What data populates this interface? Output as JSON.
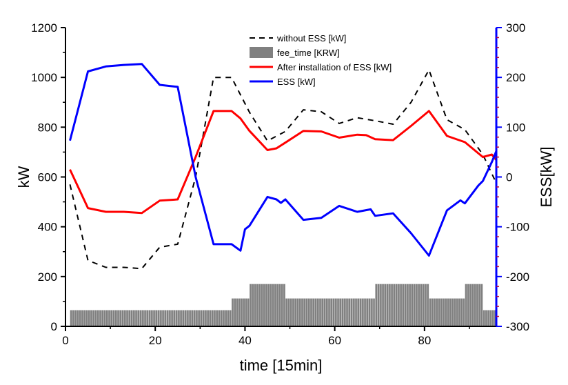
{
  "chart_data": {
    "type": "line",
    "xlabel": "time [15min]",
    "ylabel_left": "kW",
    "ylabel_right": "ESS[kW]",
    "xlim": [
      0,
      96
    ],
    "ylim_left": [
      0,
      1200
    ],
    "ylim_right": [
      -300,
      300
    ],
    "x_ticks": [
      0,
      20,
      40,
      60,
      80
    ],
    "y_left_ticks": [
      0,
      200,
      400,
      600,
      800,
      1000,
      1200
    ],
    "y_right_ticks": [
      -300,
      -200,
      -100,
      0,
      100,
      200,
      300
    ],
    "legend_position": "top-center",
    "grid": false,
    "colors": {
      "without_ess": "#000000",
      "fee_time": "#808080",
      "after_ess": "#ff0000",
      "ess": "#0000ff",
      "right_axis": "#0000ff",
      "right_minor_ticks": "#c00040"
    },
    "series": [
      {
        "name": "without ESS [kW]",
        "style": "dashed",
        "axis": "left",
        "points": [
          [
            1,
            570
          ],
          [
            5,
            265
          ],
          [
            9,
            237
          ],
          [
            13,
            237
          ],
          [
            17,
            232
          ],
          [
            21,
            318
          ],
          [
            25,
            330
          ],
          [
            29,
            600
          ],
          [
            33,
            1000
          ],
          [
            37,
            1000
          ],
          [
            41,
            860
          ],
          [
            45,
            745
          ],
          [
            49,
            783
          ],
          [
            53,
            870
          ],
          [
            57,
            862
          ],
          [
            61,
            815
          ],
          [
            65,
            838
          ],
          [
            69,
            826
          ],
          [
            73,
            812
          ],
          [
            77,
            900
          ],
          [
            81,
            1030
          ],
          [
            85,
            830
          ],
          [
            89,
            790
          ],
          [
            93,
            690
          ],
          [
            96,
            575
          ]
        ]
      },
      {
        "name": "fee_time [KRW]",
        "type": "bar",
        "axis": "left",
        "bars": [
          {
            "x0": 1,
            "x1": 37,
            "value": 65
          },
          {
            "x0": 37,
            "x1": 41,
            "value": 112
          },
          {
            "x0": 41,
            "x1": 49,
            "value": 170
          },
          {
            "x0": 49,
            "x1": 69,
            "value": 112
          },
          {
            "x0": 69,
            "x1": 81,
            "value": 170
          },
          {
            "x0": 81,
            "x1": 89,
            "value": 112
          },
          {
            "x0": 89,
            "x1": 93,
            "value": 170
          },
          {
            "x0": 93,
            "x1": 96,
            "value": 65
          }
        ]
      },
      {
        "name": "After installation of ESS [kW]",
        "style": "solid",
        "axis": "left",
        "points": [
          [
            1,
            630
          ],
          [
            5,
            475
          ],
          [
            9,
            460
          ],
          [
            13,
            460
          ],
          [
            17,
            455
          ],
          [
            21,
            505
          ],
          [
            25,
            510
          ],
          [
            29,
            680
          ],
          [
            33,
            865
          ],
          [
            37,
            865
          ],
          [
            39,
            835
          ],
          [
            41,
            785
          ],
          [
            45,
            708
          ],
          [
            47,
            715
          ],
          [
            49,
            738
          ],
          [
            53,
            785
          ],
          [
            57,
            783
          ],
          [
            61,
            758
          ],
          [
            65,
            770
          ],
          [
            67,
            768
          ],
          [
            69,
            752
          ],
          [
            73,
            748
          ],
          [
            77,
            805
          ],
          [
            81,
            865
          ],
          [
            85,
            765
          ],
          [
            89,
            740
          ],
          [
            93,
            680
          ],
          [
            95,
            690
          ],
          [
            96,
            668
          ]
        ]
      },
      {
        "name": "ESS [kW]",
        "style": "solid",
        "axis": "right",
        "points": [
          [
            1,
            73
          ],
          [
            5,
            212
          ],
          [
            9,
            222
          ],
          [
            13,
            225
          ],
          [
            17,
            227
          ],
          [
            21,
            185
          ],
          [
            25,
            181
          ],
          [
            29,
            0
          ],
          [
            33,
            -135
          ],
          [
            37,
            -135
          ],
          [
            39,
            -148
          ],
          [
            40,
            -105
          ],
          [
            41,
            -98
          ],
          [
            45,
            -40
          ],
          [
            47,
            -45
          ],
          [
            48,
            -52
          ],
          [
            49,
            -45
          ],
          [
            53,
            -86
          ],
          [
            57,
            -82
          ],
          [
            61,
            -58
          ],
          [
            65,
            -70
          ],
          [
            68,
            -65
          ],
          [
            69,
            -78
          ],
          [
            73,
            -73
          ],
          [
            77,
            -113
          ],
          [
            81,
            -158
          ],
          [
            85,
            -67
          ],
          [
            88,
            -47
          ],
          [
            89,
            -53
          ],
          [
            92,
            -17
          ],
          [
            93,
            -8
          ],
          [
            95,
            30
          ],
          [
            96,
            52
          ]
        ]
      }
    ]
  }
}
